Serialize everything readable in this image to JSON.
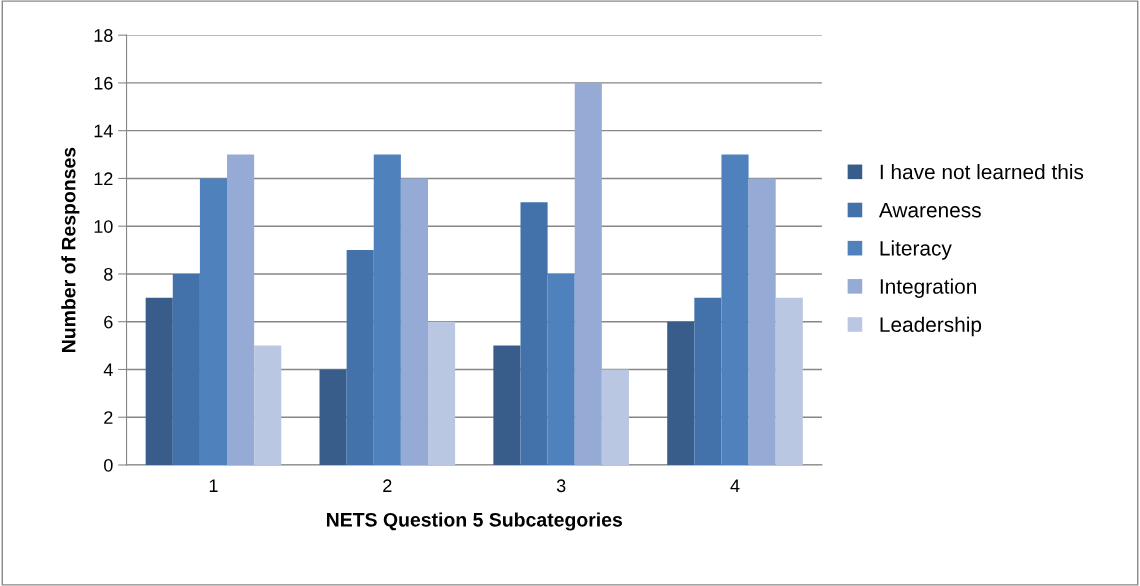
{
  "chart_data": {
    "type": "bar",
    "xlabel": "NETS Question 5 Subcategories",
    "ylabel": "Number of Responses",
    "categories": [
      "1",
      "2",
      "3",
      "4"
    ],
    "series": [
      {
        "name": "I have not learned this",
        "color": "#385d8a",
        "values": [
          7,
          4,
          5,
          6
        ]
      },
      {
        "name": "Awareness",
        "color": "#4372aa",
        "values": [
          8,
          9,
          11,
          7
        ]
      },
      {
        "name": "Literacy",
        "color": "#4f81bd",
        "values": [
          12,
          13,
          8,
          13
        ]
      },
      {
        "name": "Integration",
        "color": "#95abd5",
        "values": [
          13,
          12,
          16,
          12
        ]
      },
      {
        "name": "Leadership",
        "color": "#b9c7e2",
        "values": [
          5,
          6,
          4,
          7
        ]
      }
    ],
    "ylim": [
      0,
      18
    ],
    "yticks": [
      0,
      2,
      4,
      6,
      8,
      10,
      12,
      14,
      16,
      18
    ],
    "grid": "y",
    "legend": "right"
  }
}
